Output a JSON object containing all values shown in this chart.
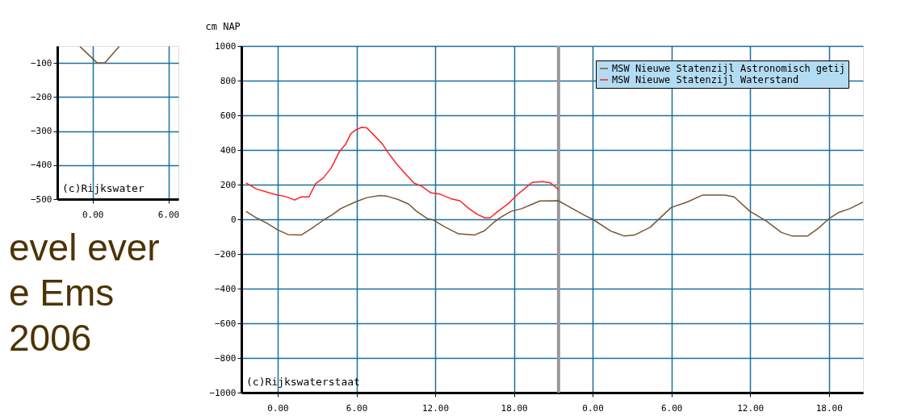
{
  "chart_data": [
    {
      "type": "line",
      "xlim": [
        "2006-10-31T21:12",
        "2006-11-01T06:48"
      ],
      "ylim": [
        -500,
        -50
      ],
      "xticks": [
        {
          "value": "2006-11-01T00:00",
          "label": "0.00"
        },
        {
          "value": "2006-11-01T06:00",
          "label": "6.00"
        }
      ],
      "yticks": [
        -100,
        -200,
        -300,
        -400,
        -500
      ],
      "grid": true,
      "series": [
        {
          "color": "#7a5530",
          "x": [
            "2006-10-31T23:00",
            "2006-11-01T00:22",
            "2006-11-01T00:58",
            "2006-11-01T02:06"
          ],
          "values": [
            -52,
            -100,
            -100,
            -52
          ]
        }
      ],
      "annotations": [
        "(c)Rijkswater",
        "evel ever",
        "e Ems",
        "2006"
      ]
    },
    {
      "type": "line",
      "ylabel": "cm NAP",
      "xlim": [
        "2006-10-31T21:14",
        "2006-11-02T20:36"
      ],
      "ylim": [
        -1000,
        1000
      ],
      "xticks": [
        {
          "value": "2006-11-01T00:00",
          "label": "0.00"
        },
        {
          "value": "2006-11-01T06:00",
          "label": "6.00"
        },
        {
          "value": "2006-11-01T12:00",
          "label": "12.00"
        },
        {
          "value": "2006-11-01T18:00",
          "label": "18.00"
        },
        {
          "value": "2006-11-02T00:00",
          "label": "0.00"
        },
        {
          "value": "2006-11-02T06:00",
          "label": "6.00"
        },
        {
          "value": "2006-11-02T12:00",
          "label": "12.00"
        },
        {
          "value": "2006-11-02T18:00",
          "label": "18.00"
        }
      ],
      "yticks": [
        1000,
        800,
        600,
        400,
        200,
        0,
        -200,
        -400,
        -600,
        -800,
        -1000
      ],
      "grid": true,
      "legend": "top right",
      "ref_lines": [
        {
          "axis": "x",
          "value": "2006-11-01T21:24",
          "color": "#999999"
        }
      ],
      "series": [
        {
          "name": "MSW Nieuwe Statenzijl Astronomisch getij",
          "color": "#7a5530",
          "x": [
            "2006-10-31T21:35",
            "2006-10-31T22:23",
            "2006-10-31T23:11",
            "2006-11-01T00:00",
            "2006-11-01T00:47",
            "2006-11-01T01:47",
            "2006-11-01T02:35",
            "2006-11-01T03:35",
            "2006-11-01T04:11",
            "2006-11-01T04:47",
            "2006-11-01T05:53",
            "2006-11-01T06:47",
            "2006-11-01T07:47",
            "2006-11-01T08:23",
            "2006-11-01T09:11",
            "2006-11-01T09:59",
            "2006-11-01T10:35",
            "2006-11-01T11:23",
            "2006-11-01T11:53",
            "2006-11-01T12:47",
            "2006-11-01T13:47",
            "2006-11-01T14:59",
            "2006-11-01T15:47",
            "2006-11-01T16:23",
            "2006-11-01T16:59",
            "2006-11-01T17:47",
            "2006-11-01T18:35",
            "2006-11-01T19:17",
            "2006-11-01T19:59",
            "2006-11-01T21:23",
            "2006-11-01T23:23",
            "2006-11-02T00:00",
            "2006-11-02T01:23",
            "2006-11-02T02:23",
            "2006-11-02T03:11",
            "2006-11-02T04:23",
            "2006-11-02T05:59",
            "2006-11-02T07:11",
            "2006-11-02T08:23",
            "2006-11-02T10:05",
            "2006-11-02T10:47",
            "2006-11-02T11:59",
            "2006-11-02T13:11",
            "2006-11-02T14:23",
            "2006-11-02T15:11",
            "2006-11-02T16:23",
            "2006-11-02T17:11",
            "2006-11-02T18:05",
            "2006-11-02T18:47",
            "2006-11-02T19:35",
            "2006-11-02T20:36"
          ],
          "values": [
            46,
            8,
            -23,
            -61,
            -88,
            -91,
            -53,
            0,
            27,
            61,
            99,
            125,
            137,
            132,
            114,
            87,
            46,
            5,
            -5,
            -46,
            -84,
            -91,
            -65,
            -23,
            11,
            46,
            61,
            84,
            106,
            107,
            23,
            0,
            -68,
            -96,
            -91,
            -46,
            68,
            99,
            140,
            140,
            129,
            46,
            -8,
            -76,
            -96,
            -96,
            -53,
            8,
            41,
            61,
            99
          ]
        },
        {
          "name": "MSW Nieuwe Statenzijl Waterstand",
          "color": "#ff2020",
          "x": [
            "2006-10-31T21:35",
            "2006-10-31T22:23",
            "2006-10-31T23:23",
            "2006-11-01T00:00",
            "2006-11-01T00:35",
            "2006-11-01T01:17",
            "2006-11-01T01:47",
            "2006-11-01T02:23",
            "2006-11-01T02:53",
            "2006-11-01T03:29",
            "2006-11-01T04:05",
            "2006-11-01T04:41",
            "2006-11-01T05:11",
            "2006-11-01T05:35",
            "2006-11-01T05:59",
            "2006-11-01T06:23",
            "2006-11-01T06:47",
            "2006-11-01T07:23",
            "2006-11-01T07:59",
            "2006-11-01T08:23",
            "2006-11-01T08:59",
            "2006-11-01T09:35",
            "2006-11-01T10:23",
            "2006-11-01T10:59",
            "2006-11-01T11:41",
            "2006-11-01T12:23",
            "2006-11-01T13:11",
            "2006-11-01T13:53",
            "2006-11-01T14:35",
            "2006-11-01T15:11",
            "2006-11-01T15:47",
            "2006-11-01T16:11",
            "2006-11-01T16:47",
            "2006-11-01T17:35",
            "2006-11-01T18:11",
            "2006-11-01T18:47",
            "2006-11-01T19:23",
            "2006-11-01T20:11",
            "2006-11-01T20:47",
            "2006-11-01T21:23"
          ],
          "values": [
            210,
            175,
            152,
            140,
            132,
            111,
            129,
            129,
            205,
            239,
            297,
            388,
            434,
            495,
            517,
            530,
            528,
            482,
            434,
            388,
            327,
            274,
            209,
            190,
            152,
            145,
            119,
            107,
            61,
            30,
            8,
            8,
            46,
            91,
            137,
            175,
            213,
            217,
            210,
            172
          ]
        }
      ],
      "annotations": [
        "(c)Rijkswaterstaat"
      ]
    }
  ]
}
